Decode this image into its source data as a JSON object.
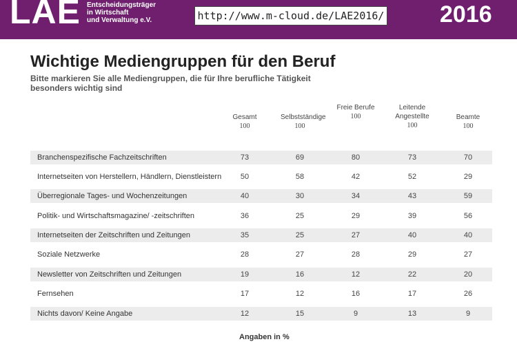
{
  "banner": {
    "logo": "LAE",
    "tagline": [
      "Entscheidungsträger",
      "in Wirtschaft",
      "und Verwaltung e.V."
    ],
    "url": "http://www.m-cloud.de/LAE2016/",
    "year": "2016",
    "color": "#6f1f6e"
  },
  "chart_data": {
    "type": "table",
    "title": "Wichtige Mediengruppen für den Beruf",
    "subtitle": "Bitte markieren Sie alle Mediengruppen, die für Ihre berufliche Tätigkeit besonders wichtig sind",
    "columns": [
      {
        "name": "Gesamt",
        "base": "100"
      },
      {
        "name": "Selbstständige",
        "base": "100"
      },
      {
        "name": "Freie Berufe",
        "base": "100"
      },
      {
        "name": "Leitende Angestellte",
        "base": "100"
      },
      {
        "name": "Beamte",
        "base": "100"
      }
    ],
    "rows": [
      {
        "label": "Branchenspezifische Fachzeitschriften",
        "values": [
          73,
          69,
          80,
          73,
          70
        ]
      },
      {
        "label": "Internetseiten von Herstellern, Händlern, Dienstleistern",
        "values": [
          50,
          58,
          42,
          52,
          29
        ]
      },
      {
        "label": "Überregionale Tages- und Wochenzeitungen",
        "values": [
          40,
          30,
          34,
          43,
          59
        ]
      },
      {
        "label": "Politik- und Wirtschaftsmagazine/ -zeitschriften",
        "values": [
          36,
          25,
          29,
          39,
          56
        ]
      },
      {
        "label": "Internetseiten der Zeitschriften und Zeitungen",
        "values": [
          35,
          25,
          27,
          40,
          40
        ]
      },
      {
        "label": "Soziale Netzwerke",
        "values": [
          28,
          27,
          28,
          29,
          27
        ]
      },
      {
        "label": "Newsletter von Zeitschriften und Zeitungen",
        "values": [
          19,
          16,
          12,
          22,
          20
        ]
      },
      {
        "label": "Fernsehen",
        "values": [
          17,
          12,
          16,
          17,
          26
        ]
      },
      {
        "label": "Nichts davon/ Keine Angabe",
        "values": [
          12,
          15,
          9,
          13,
          9
        ]
      }
    ],
    "note": "Angaben in %"
  }
}
